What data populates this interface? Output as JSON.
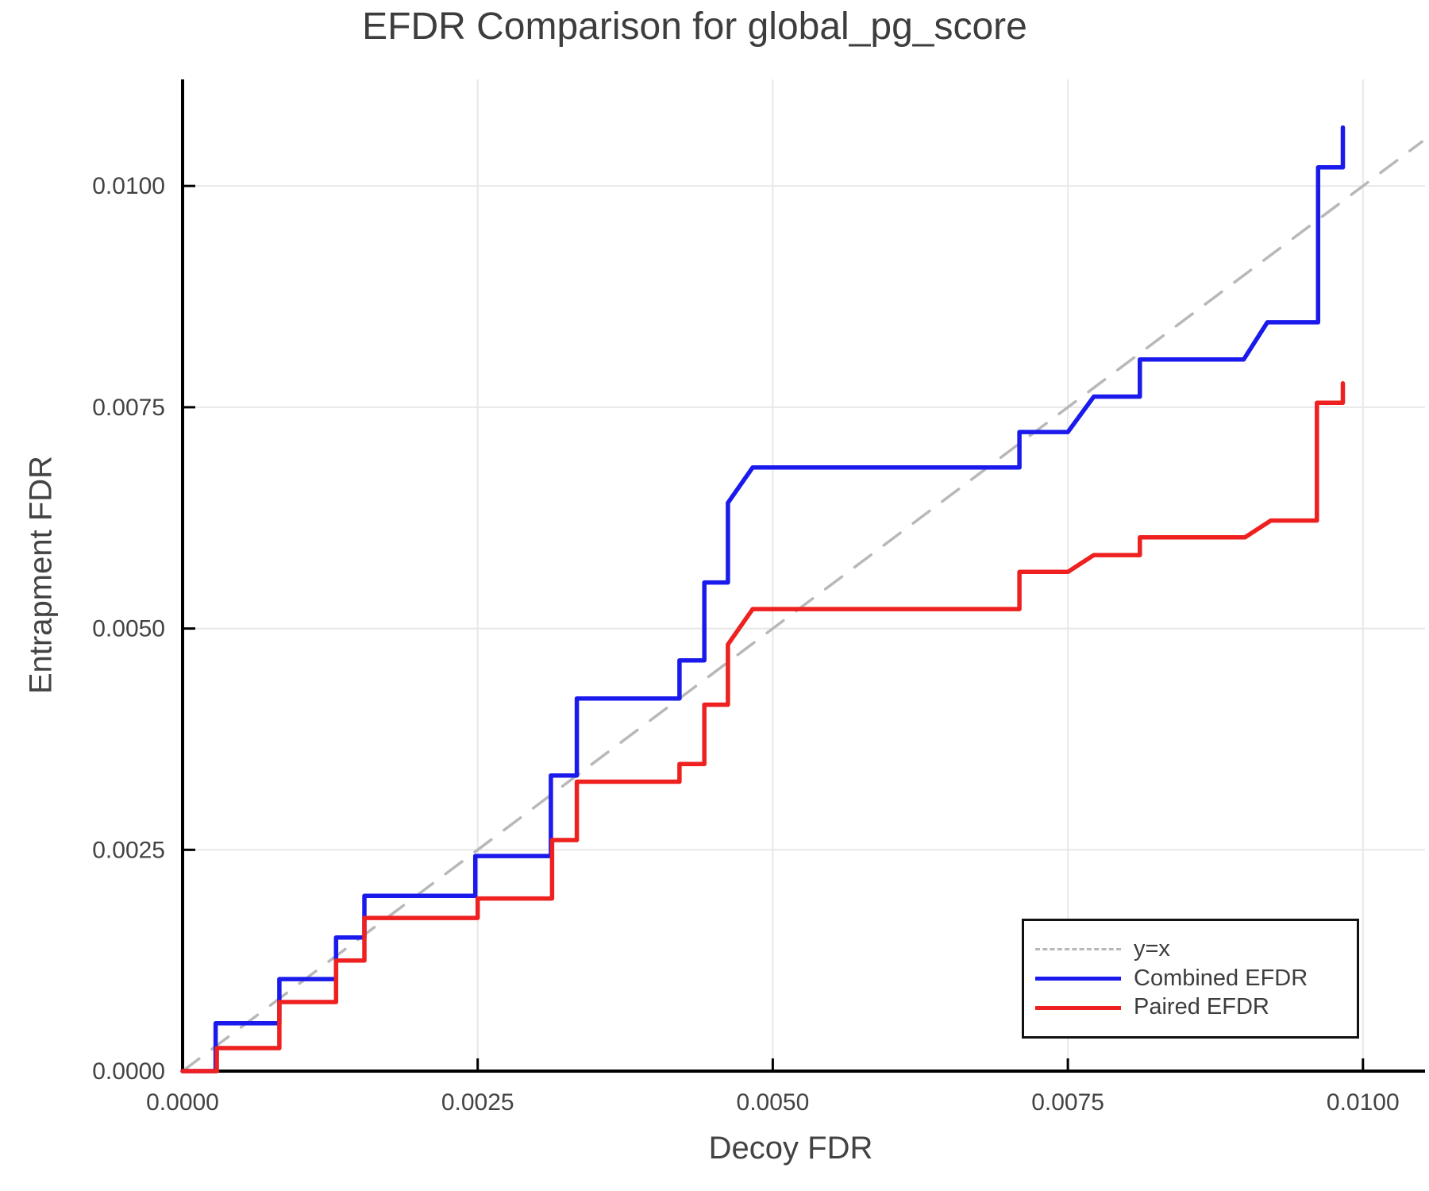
{
  "title": "EFDR Comparison for global_pg_score",
  "axes": {
    "xlabel": "Decoy FDR",
    "ylabel": "Entrapment FDR",
    "x_tick_labels": [
      "0.0000",
      "0.0025",
      "0.0050",
      "0.0075",
      "0.0100"
    ],
    "x_tick_values": [
      0,
      0.0025,
      0.005,
      0.0075,
      0.01
    ],
    "y_tick_labels": [
      "0.0000",
      "0.0025",
      "0.0050",
      "0.0075",
      "0.0100"
    ],
    "y_tick_values": [
      0,
      0.0025,
      0.005,
      0.0075,
      0.01
    ]
  },
  "colors": {
    "combined": "#1a1aec",
    "paired": "#ee2020",
    "identity": "#b8b8b8",
    "grid": "#e8e8e8",
    "spine": "#000000",
    "text": "#3d3d3d",
    "tick_text": "#434343"
  },
  "legend": {
    "position": "lower right",
    "items": [
      "y=x",
      "Combined EFDR",
      "Paired EFDR"
    ]
  },
  "chart_data": {
    "type": "line",
    "title": "EFDR Comparison for global_pg_score",
    "xlabel": "Decoy FDR",
    "ylabel": "Entrapment FDR",
    "xlim": [
      0,
      0.01053
    ],
    "ylim": [
      0,
      0.0112
    ],
    "grid": true,
    "legend_position": "lower right",
    "series": [
      {
        "name": "y=x",
        "style": "dashed",
        "color": "#b8b8b8",
        "points": [
          [
            0,
            0
          ],
          [
            0.0105,
            0.0105
          ]
        ]
      },
      {
        "name": "Combined EFDR",
        "style": "step",
        "color": "#1a1aec",
        "points": [
          [
            0.0,
            0.0
          ],
          [
            0.00028,
            0.0
          ],
          [
            0.00028,
            0.00054
          ],
          [
            0.00082,
            0.00054
          ],
          [
            0.00082,
            0.00104
          ],
          [
            0.0013,
            0.00104
          ],
          [
            0.0013,
            0.00151
          ],
          [
            0.00154,
            0.00151
          ],
          [
            0.00154,
            0.00198
          ],
          [
            0.00248,
            0.00198
          ],
          [
            0.00248,
            0.00243
          ],
          [
            0.00312,
            0.00243
          ],
          [
            0.00312,
            0.00334
          ],
          [
            0.00334,
            0.00334
          ],
          [
            0.00334,
            0.00421
          ],
          [
            0.00421,
            0.00421
          ],
          [
            0.00421,
            0.00464
          ],
          [
            0.00442,
            0.00464
          ],
          [
            0.00442,
            0.00552
          ],
          [
            0.00462,
            0.00552
          ],
          [
            0.00462,
            0.00642
          ],
          [
            0.00483,
            0.00682
          ],
          [
            0.00709,
            0.00682
          ],
          [
            0.00709,
            0.00722
          ],
          [
            0.0075,
            0.00722
          ],
          [
            0.00772,
            0.00762
          ],
          [
            0.00811,
            0.00762
          ],
          [
            0.00811,
            0.00804
          ],
          [
            0.00899,
            0.00804
          ],
          [
            0.00919,
            0.00846
          ],
          [
            0.00962,
            0.00846
          ],
          [
            0.00962,
            0.01021
          ],
          [
            0.00983,
            0.01021
          ],
          [
            0.00983,
            0.01066
          ]
        ]
      },
      {
        "name": "Paired EFDR",
        "style": "step",
        "color": "#ee2020",
        "points": [
          [
            0.0,
            0.0
          ],
          [
            0.00029,
            0.0
          ],
          [
            0.00029,
            0.00026
          ],
          [
            0.00082,
            0.00026
          ],
          [
            0.00082,
            0.00078
          ],
          [
            0.0013,
            0.00078
          ],
          [
            0.0013,
            0.00125
          ],
          [
            0.00154,
            0.00125
          ],
          [
            0.00154,
            0.00173
          ],
          [
            0.0025,
            0.00173
          ],
          [
            0.0025,
            0.00195
          ],
          [
            0.00313,
            0.00195
          ],
          [
            0.00313,
            0.00261
          ],
          [
            0.00334,
            0.00261
          ],
          [
            0.00334,
            0.00327
          ],
          [
            0.00421,
            0.00327
          ],
          [
            0.00421,
            0.00347
          ],
          [
            0.00442,
            0.00347
          ],
          [
            0.00442,
            0.00414
          ],
          [
            0.00462,
            0.00414
          ],
          [
            0.00462,
            0.00482
          ],
          [
            0.00483,
            0.00522
          ],
          [
            0.00709,
            0.00522
          ],
          [
            0.00709,
            0.00564
          ],
          [
            0.0075,
            0.00564
          ],
          [
            0.00772,
            0.00583
          ],
          [
            0.00811,
            0.00583
          ],
          [
            0.00811,
            0.00603
          ],
          [
            0.009,
            0.00603
          ],
          [
            0.00922,
            0.00622
          ],
          [
            0.00961,
            0.00622
          ],
          [
            0.00961,
            0.00755
          ],
          [
            0.00983,
            0.00755
          ],
          [
            0.00983,
            0.00777
          ]
        ]
      }
    ]
  }
}
